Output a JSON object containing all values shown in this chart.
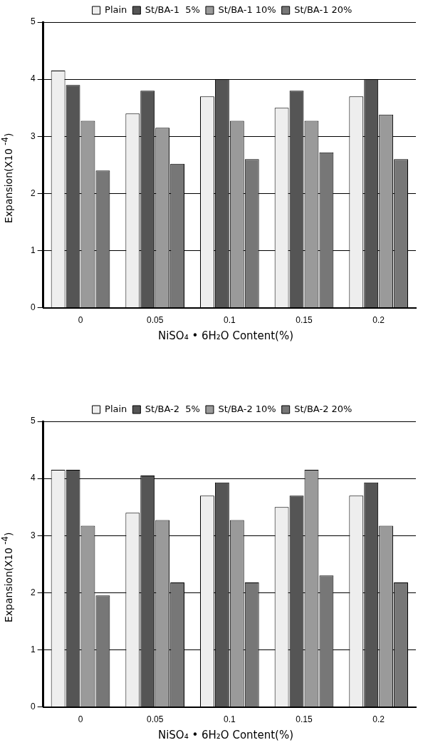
{
  "chart_data": [
    {
      "type": "bar",
      "xlabel": "NiSO₄ • 6H₂O Content(%)",
      "ylabel": "Expansion(X10 $^{-4}$)",
      "categories": [
        "0",
        "0.05",
        "0.1",
        "0.15",
        "0.2"
      ],
      "series": [
        {
          "name": "Plain",
          "color": "#eeeeee",
          "values": [
            4.15,
            3.4,
            3.7,
            3.5,
            3.7
          ]
        },
        {
          "name": "St/BA-1  5%",
          "color": "#555555",
          "values": [
            3.9,
            3.8,
            4.0,
            3.8,
            4.0
          ]
        },
        {
          "name": "St/BA-1 10%",
          "color": "#9a9a9a",
          "values": [
            3.27,
            3.15,
            3.27,
            3.27,
            3.38
          ]
        },
        {
          "name": "St/BA-1 20%",
          "color": "#777777",
          "values": [
            2.4,
            2.52,
            2.6,
            2.72,
            2.6
          ]
        }
      ],
      "ylim": [
        0,
        5
      ],
      "yticks": [
        0,
        1,
        2,
        3,
        4,
        5
      ],
      "grid": "y",
      "legend": "top"
    },
    {
      "type": "bar",
      "xlabel": "NiSO₄ • 6H₂O Content(%)",
      "ylabel": "Expansion(X10 $^{-4}$)",
      "categories": [
        "0",
        "0.05",
        "0.1",
        "0.15",
        "0.2"
      ],
      "series": [
        {
          "name": "Plain",
          "color": "#eeeeee",
          "values": [
            4.15,
            3.4,
            3.7,
            3.5,
            3.7
          ]
        },
        {
          "name": "St/BA-2  5%",
          "color": "#555555",
          "values": [
            4.15,
            4.05,
            3.93,
            3.7,
            3.93
          ]
        },
        {
          "name": "St/BA-2 10%",
          "color": "#9a9a9a",
          "values": [
            3.17,
            3.27,
            3.27,
            4.15,
            3.17
          ]
        },
        {
          "name": "St/BA-2 20%",
          "color": "#777777",
          "values": [
            1.95,
            2.18,
            2.18,
            2.3,
            2.18
          ]
        }
      ],
      "ylim": [
        0,
        5
      ],
      "yticks": [
        0,
        1,
        2,
        3,
        4,
        5
      ],
      "grid": "y",
      "legend": "top"
    }
  ]
}
